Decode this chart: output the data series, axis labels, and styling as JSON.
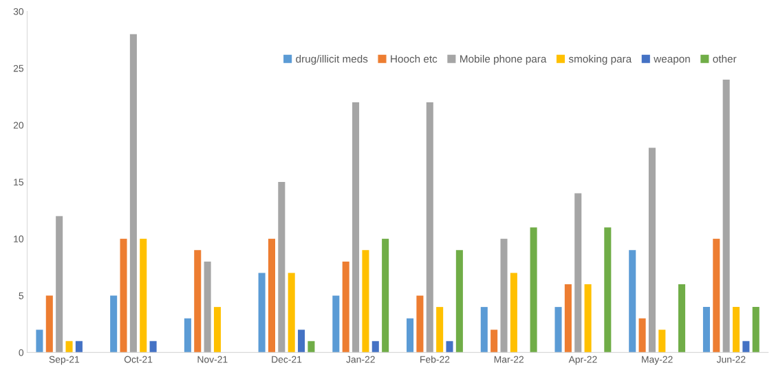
{
  "chart_data": {
    "type": "bar",
    "categories": [
      "Sep-21",
      "Oct-21",
      "Nov-21",
      "Dec-21",
      "Jan-22",
      "Feb-22",
      "Mar-22",
      "Apr-22",
      "May-22",
      "Jun-22"
    ],
    "series": [
      {
        "name": "drug/illicit meds",
        "color": "#5b9bd5",
        "values": [
          2,
          5,
          3,
          7,
          5,
          3,
          4,
          4,
          9,
          4
        ]
      },
      {
        "name": "Hooch etc",
        "color": "#ed7d31",
        "values": [
          5,
          10,
          9,
          10,
          8,
          5,
          2,
          6,
          3,
          10
        ]
      },
      {
        "name": "Mobile phone para",
        "color": "#a5a5a5",
        "values": [
          12,
          28,
          8,
          15,
          22,
          22,
          10,
          14,
          18,
          24
        ]
      },
      {
        "name": "smoking para",
        "color": "#ffc000",
        "values": [
          1,
          10,
          4,
          7,
          9,
          4,
          7,
          6,
          2,
          4
        ]
      },
      {
        "name": "weapon",
        "color": "#4472c4",
        "values": [
          1,
          1,
          0,
          2,
          1,
          1,
          0,
          0,
          0,
          1
        ]
      },
      {
        "name": "other",
        "color": "#70ad47",
        "values": [
          0,
          0,
          0,
          1,
          10,
          9,
          11,
          11,
          6,
          4
        ]
      }
    ],
    "ylim": [
      0,
      30
    ],
    "yticks": [
      0,
      5,
      10,
      15,
      20,
      25,
      30
    ],
    "grid": false,
    "legend": "top right"
  }
}
